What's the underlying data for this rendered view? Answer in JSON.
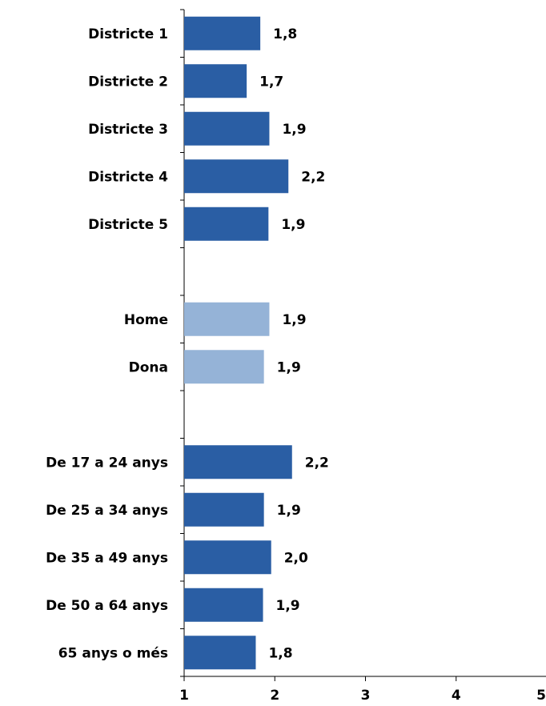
{
  "chart_data": {
    "type": "bar",
    "orientation": "horizontal",
    "categories": [
      "Districte 1",
      "Districte 2",
      "Districte 3",
      "Districte 4",
      "Districte 5",
      "",
      "Home",
      "Dona",
      "",
      "De 17 a 24 anys",
      "De 25 a 34 anys",
      "De 35 a 49 anys",
      "De 50 a 64 anys",
      "65 anys o més"
    ],
    "values": [
      1.84,
      1.69,
      1.94,
      2.15,
      1.93,
      null,
      1.94,
      1.88,
      null,
      2.19,
      1.88,
      1.96,
      1.87,
      1.79
    ],
    "value_labels": [
      "1,8",
      "1,7",
      "1,9",
      "2,2",
      "1,9",
      "",
      "1,9",
      "1,9",
      "",
      "2,2",
      "1,9",
      "2,0",
      "1,9",
      "1,8"
    ],
    "colors": [
      "#2a5ea4",
      "#2a5ea4",
      "#2a5ea4",
      "#2a5ea4",
      "#2a5ea4",
      "",
      "#95b3d7",
      "#95b3d7",
      "",
      "#2a5ea4",
      "#2a5ea4",
      "#2a5ea4",
      "#2a5ea4",
      "#2a5ea4"
    ],
    "xlim": [
      1,
      5
    ],
    "xticks": [
      1,
      2,
      3,
      4,
      5
    ],
    "xtick_labels": [
      "1",
      "2",
      "3",
      "4",
      "5"
    ],
    "grid": false,
    "legend": "none",
    "title": "",
    "xlabel": "",
    "ylabel": ""
  }
}
